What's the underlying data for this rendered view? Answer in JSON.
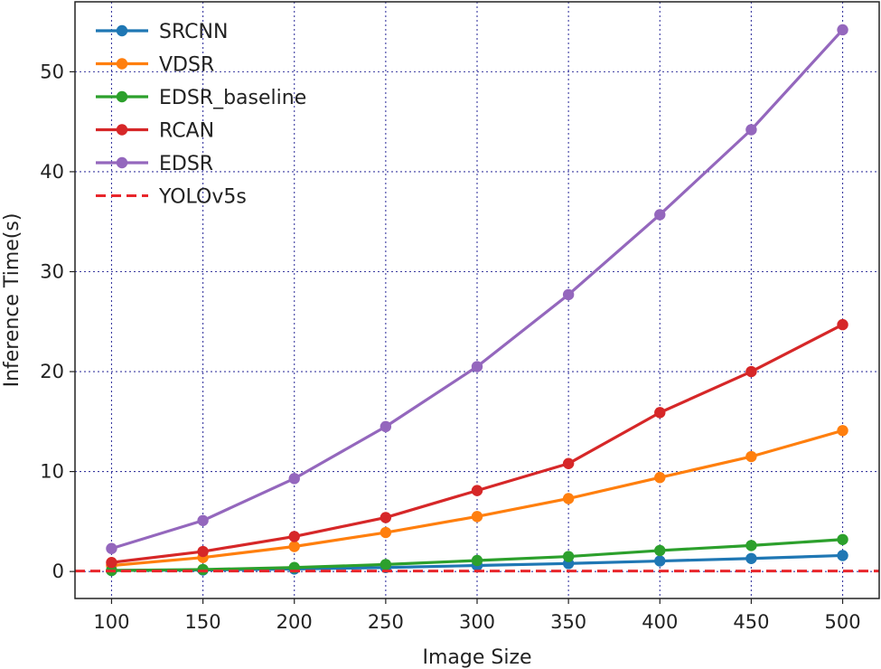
{
  "chart_data": {
    "type": "line",
    "title": "",
    "xlabel": "Image Size",
    "ylabel": "Inference Time(s)",
    "xlim": [
      80,
      520
    ],
    "ylim": [
      -2.7,
      57
    ],
    "x": [
      100,
      150,
      200,
      250,
      300,
      350,
      400,
      450,
      500
    ],
    "xticks": [
      "100",
      "150",
      "200",
      "250",
      "300",
      "350",
      "400",
      "450",
      "500"
    ],
    "yticks": [
      "0",
      "10",
      "20",
      "30",
      "40",
      "50"
    ],
    "grid": true,
    "legend_position": "top-left",
    "series": [
      {
        "name": "SRCNN",
        "color": "#1f77b4",
        "style": "solid-marker",
        "values": [
          0.1,
          0.15,
          0.25,
          0.4,
          0.6,
          0.8,
          1.05,
          1.3,
          1.6
        ]
      },
      {
        "name": "VDSR",
        "color": "#ff7f0e",
        "style": "solid-marker",
        "values": [
          0.6,
          1.4,
          2.5,
          3.9,
          5.5,
          7.3,
          9.4,
          11.5,
          14.1
        ]
      },
      {
        "name": "EDSR_baseline",
        "color": "#2ca02c",
        "style": "solid-marker",
        "values": [
          0.1,
          0.2,
          0.4,
          0.7,
          1.1,
          1.5,
          2.1,
          2.6,
          3.2
        ]
      },
      {
        "name": "RCAN",
        "color": "#d62728",
        "style": "solid-marker",
        "values": [
          0.9,
          2.0,
          3.5,
          5.4,
          8.1,
          10.8,
          15.9,
          20.0,
          24.7
        ]
      },
      {
        "name": "EDSR",
        "color": "#9467bd",
        "style": "solid-marker",
        "values": [
          2.3,
          5.1,
          9.3,
          14.5,
          20.5,
          27.7,
          35.7,
          44.2,
          54.2
        ]
      },
      {
        "name": "YOLOv5s",
        "color": "#e8262b",
        "style": "dashed",
        "values": [
          0.05,
          0.05,
          0.05,
          0.05,
          0.05,
          0.05,
          0.05,
          0.05,
          0.05
        ]
      }
    ]
  }
}
